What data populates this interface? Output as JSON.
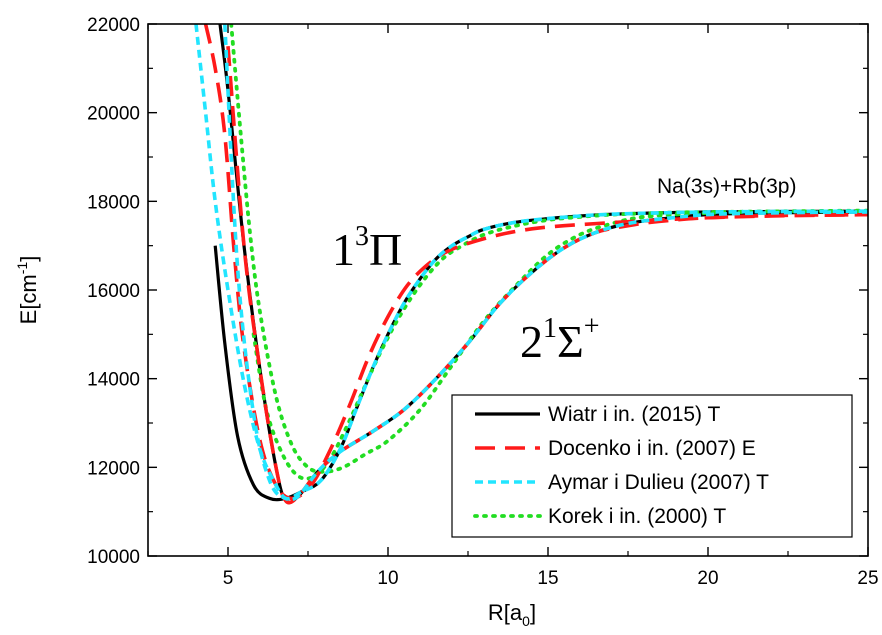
{
  "chart_data": {
    "type": "line",
    "xlabel": "R[a0]",
    "xlabel_base": "R[a",
    "xlabel_sub": "0",
    "xlabel_close": "]",
    "ylabel": "E[cm-1]",
    "ylabel_base": "E[cm",
    "ylabel_sup": "-1",
    "ylabel_close": "]",
    "xlim": [
      2.5,
      25
    ],
    "ylim": [
      10000,
      22000
    ],
    "xticks": [
      5,
      10,
      15,
      20,
      25
    ],
    "yticks": [
      10000,
      12000,
      14000,
      16000,
      18000,
      20000,
      22000
    ],
    "grid": false,
    "legend_position": "bottom-right",
    "annotations": {
      "asymptote": "Na(3s)+Rb(3p)",
      "state_pi": {
        "base": "1",
        "sup": "3",
        "symbol": "Π"
      },
      "state_sigma": {
        "base": "2",
        "sup": "1",
        "symbol": "Σ",
        "sup2": "+"
      }
    },
    "series": [
      {
        "name": "Wiatr i in. (2015) T",
        "color": "#000000",
        "dash": "solid",
        "state_sigma": {
          "x": [
            4.75,
            5.0,
            5.5,
            6.0,
            6.5,
            6.8,
            7.2,
            7.8,
            8.5,
            9.5,
            10.5,
            11.5,
            12.5,
            13.5,
            14.5,
            15.5,
            16.5,
            17.5,
            18.5,
            20,
            22,
            25
          ],
          "y": [
            22000,
            20500,
            17000,
            14200,
            12000,
            11250,
            11350,
            11900,
            12350,
            12800,
            13300,
            14000,
            14800,
            15700,
            16400,
            16950,
            17300,
            17500,
            17600,
            17700,
            17740,
            17760
          ]
        },
        "state_pi": {
          "x": [
            4.6,
            4.9,
            5.3,
            5.8,
            6.3,
            6.8,
            7.3,
            7.9,
            8.5,
            9.0,
            9.5,
            10.0,
            10.5,
            11.0,
            11.5,
            12.0,
            12.5,
            13.0,
            14.0,
            15.0,
            16.0,
            17.0,
            18.5,
            20,
            22,
            25
          ],
          "y": [
            17000,
            14800,
            12700,
            11600,
            11300,
            11300,
            11450,
            11700,
            12400,
            13300,
            14200,
            15000,
            15700,
            16250,
            16700,
            17000,
            17200,
            17370,
            17530,
            17610,
            17670,
            17710,
            17740,
            17760,
            17770,
            17780
          ]
        }
      },
      {
        "name": "Docenko i in. (2007) E",
        "color": "#ff1a1a",
        "dash": "long-dash",
        "state_sigma": {
          "x": [
            5.0,
            5.5,
            6.0,
            6.5,
            6.8,
            7.2,
            7.8,
            8.5,
            9.5,
            10.5,
            11.5,
            12.5,
            13.5,
            14.5,
            15.5,
            16.5,
            17.5,
            18.5,
            20,
            22,
            25
          ],
          "y": [
            21500,
            17000,
            14200,
            12000,
            11250,
            11350,
            11900,
            12350,
            12800,
            13300,
            14000,
            14800,
            15700,
            16400,
            16950,
            17300,
            17450,
            17550,
            17630,
            17680,
            17700
          ]
        },
        "state_pi": {
          "x": [
            4.3,
            4.6,
            4.9,
            5.2,
            5.5,
            6.0,
            6.5,
            7.0,
            7.6,
            8.2,
            8.8,
            9.4,
            10.0,
            10.6,
            11.2,
            11.8,
            12.5,
            13.5,
            14.5,
            15.5,
            17.0,
            18.5,
            20,
            22,
            25
          ],
          "y": [
            22000,
            21000,
            19500,
            16800,
            14700,
            12600,
            11600,
            11300,
            11600,
            12400,
            13400,
            14500,
            15400,
            16100,
            16550,
            16850,
            17050,
            17250,
            17380,
            17450,
            17520,
            17580,
            17630,
            17670,
            17700
          ]
        }
      },
      {
        "name": "Aymar i Dulieu (2007) T",
        "color": "#22e5ff",
        "dash": "short-dash",
        "state_sigma": {
          "x": [
            4.0,
            4.3,
            4.6,
            5.0,
            5.5,
            6.0,
            6.5,
            6.8,
            7.2,
            7.8,
            8.5,
            9.5,
            10.5,
            11.5,
            12.5,
            13.5,
            14.5,
            15.5,
            16.5,
            17.5,
            18.5,
            20,
            22,
            25
          ],
          "y": [
            22000,
            20000,
            18000,
            16000,
            13900,
            12400,
            11600,
            11300,
            11350,
            11900,
            12350,
            12800,
            13300,
            14000,
            14800,
            15700,
            16400,
            16950,
            17300,
            17500,
            17600,
            17700,
            17740,
            17760
          ]
        },
        "state_pi": {
          "x": [
            4.9,
            5.3,
            5.8,
            6.3,
            6.8,
            7.3,
            7.9,
            8.5,
            9.0,
            9.5,
            10.0,
            10.5,
            11.0,
            11.5,
            12.0,
            12.5,
            13.0,
            14.0,
            15.0,
            16.0,
            17.0,
            18.5,
            20,
            22,
            25
          ],
          "y": [
            22000,
            16500,
            13200,
            11700,
            11300,
            11450,
            11700,
            12400,
            13300,
            14200,
            15000,
            15700,
            16250,
            16700,
            17000,
            17200,
            17370,
            17530,
            17610,
            17670,
            17710,
            17740,
            17760,
            17770,
            17780
          ]
        }
      },
      {
        "name": "Korek i in. (2000) T",
        "color": "#22dd22",
        "dash": "dotted",
        "state_sigma": {
          "x": [
            5.1,
            5.4,
            5.7,
            6.0,
            6.5,
            7.0,
            7.5,
            8.0,
            8.6,
            9.3,
            10.0,
            11.0,
            12.0,
            13.0,
            14.0,
            15.0,
            16.0,
            17.0,
            18.0,
            19.5,
            21,
            23,
            25
          ],
          "y": [
            22000,
            19500,
            17200,
            15500,
            13600,
            12500,
            12000,
            11900,
            12000,
            12300,
            12600,
            13300,
            14300,
            15300,
            16100,
            16800,
            17250,
            17500,
            17650,
            17720,
            17760,
            17780,
            17790
          ]
        },
        "state_pi": {
          "x": [
            5.8,
            6.2,
            6.7,
            7.2,
            7.7,
            8.2,
            8.7,
            9.2,
            9.7,
            10.2,
            10.7,
            11.2,
            11.7,
            12.2,
            13.0,
            14.0,
            15.0,
            16.0,
            17.0,
            18.5,
            20,
            22,
            25
          ],
          "y": [
            15000,
            13300,
            12300,
            11800,
            11800,
            12200,
            12900,
            13700,
            14500,
            15200,
            15800,
            16300,
            16700,
            16950,
            17250,
            17450,
            17580,
            17650,
            17700,
            17740,
            17760,
            17770,
            17780
          ]
        }
      }
    ]
  }
}
